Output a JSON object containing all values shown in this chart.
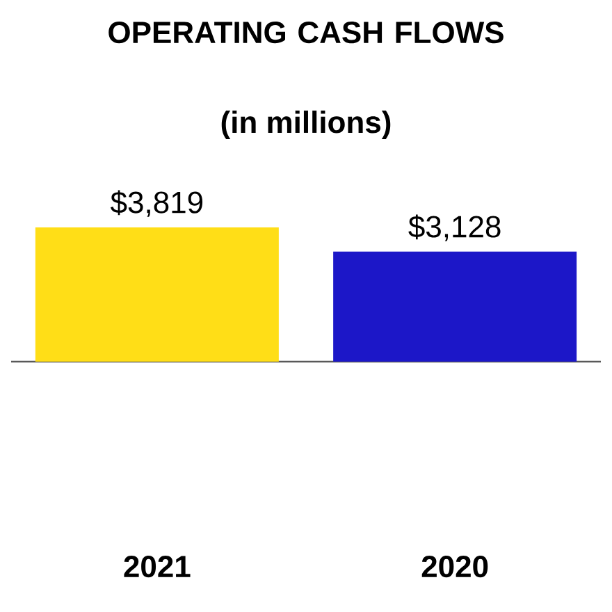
{
  "chart_data": {
    "type": "bar",
    "title": "OPERATING CASH FLOWS",
    "subtitle": "(in millions)",
    "categories": [
      "2021",
      "2020"
    ],
    "values": [
      3819,
      3128
    ],
    "colors": [
      "#ffde17",
      "#1c17c8"
    ],
    "value_labels": [
      "$3,819",
      "$3,128"
    ]
  }
}
